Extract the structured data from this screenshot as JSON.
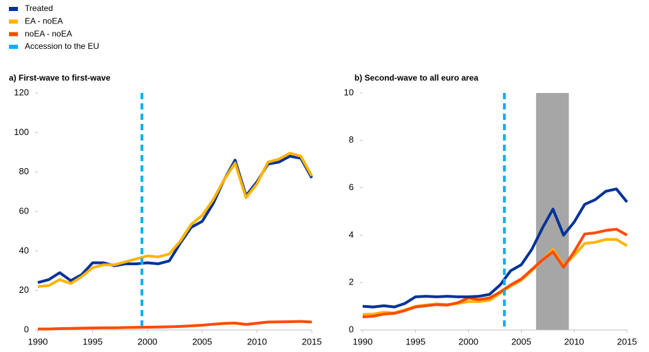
{
  "chart_data": [
    {
      "type": "line",
      "title": "a) First-wave to first-wave",
      "x": [
        1990,
        1991,
        1992,
        1993,
        1994,
        1995,
        1996,
        1997,
        1998,
        1999,
        2000,
        2001,
        2002,
        2003,
        2004,
        2005,
        2006,
        2007,
        2008,
        2009,
        2010,
        2011,
        2012,
        2013,
        2014,
        2015
      ],
      "xlim": [
        1990,
        2015
      ],
      "xticks": [
        1990,
        1995,
        2000,
        2005,
        2010,
        2015
      ],
      "ylim": [
        0,
        120
      ],
      "yticks": [
        0,
        20,
        40,
        60,
        80,
        100,
        120
      ],
      "series": [
        {
          "name": "Treated",
          "color": "#003299",
          "values": [
            24,
            25.5,
            29,
            25,
            28,
            34,
            34,
            32.5,
            33.5,
            33.5,
            34,
            33.5,
            35,
            44,
            52,
            55,
            64,
            76,
            86,
            68,
            75,
            84,
            85,
            88,
            87,
            77
          ]
        },
        {
          "name": "EA - noEA",
          "color": "#ffb400",
          "values": [
            22,
            22.5,
            25.5,
            23.5,
            27,
            31.5,
            33,
            33,
            34.5,
            36,
            37.5,
            37,
            38.5,
            45,
            53.5,
            58,
            66,
            76,
            84.5,
            67,
            74,
            85,
            86.5,
            89.5,
            88,
            78
          ]
        },
        {
          "name": "noEA - noEA",
          "color": "#ff4b00",
          "values": [
            0.5,
            0.5,
            0.7,
            0.8,
            0.9,
            1,
            1.1,
            1.1,
            1.2,
            1.3,
            1.4,
            1.5,
            1.6,
            1.8,
            2.1,
            2.4,
            2.9,
            3.3,
            3.5,
            2.8,
            3.4,
            4,
            4.1,
            4.2,
            4.3,
            4
          ]
        }
      ],
      "vline": {
        "name": "Accession to the EU",
        "x": 1999.5,
        "color": "#00b1ea"
      }
    },
    {
      "type": "line",
      "title": "b) Second-wave to all euro area",
      "x": [
        1990,
        1991,
        1992,
        1993,
        1994,
        1995,
        1996,
        1997,
        1998,
        1999,
        2000,
        2001,
        2002,
        2003,
        2004,
        2005,
        2006,
        2007,
        2008,
        2009,
        2010,
        2011,
        2012,
        2013,
        2014,
        2015
      ],
      "xlim": [
        1990,
        2015
      ],
      "xticks": [
        1990,
        1995,
        2000,
        2005,
        2010,
        2015
      ],
      "ylim": [
        0,
        10
      ],
      "yticks": [
        0,
        2,
        4,
        6,
        8,
        10
      ],
      "series": [
        {
          "name": "Treated",
          "color": "#003299",
          "values": [
            1.0,
            0.97,
            1.02,
            0.97,
            1.12,
            1.4,
            1.42,
            1.4,
            1.42,
            1.4,
            1.4,
            1.42,
            1.5,
            1.9,
            2.5,
            2.75,
            3.4,
            4.3,
            5.1,
            4.0,
            4.55,
            5.3,
            5.5,
            5.85,
            5.95,
            5.4
          ]
        },
        {
          "name": "EA - noEA",
          "color": "#ffb400",
          "values": [
            0.65,
            0.67,
            0.75,
            0.72,
            0.85,
            1.0,
            1.05,
            1.1,
            1.07,
            1.12,
            1.2,
            1.2,
            1.25,
            1.55,
            1.85,
            2.1,
            2.5,
            2.95,
            3.4,
            2.7,
            3.15,
            3.65,
            3.7,
            3.82,
            3.82,
            3.55
          ]
        },
        {
          "name": "noEA - noEA",
          "color": "#ff4b00",
          "values": [
            0.55,
            0.58,
            0.67,
            0.7,
            0.82,
            0.97,
            1.02,
            1.07,
            1.05,
            1.15,
            1.35,
            1.28,
            1.35,
            1.6,
            1.9,
            2.15,
            2.55,
            2.95,
            3.3,
            2.65,
            3.3,
            4.05,
            4.1,
            4.2,
            4.25,
            4.0
          ]
        }
      ],
      "vline": {
        "name": "Accession to the EU",
        "x": 2003.4,
        "color": "#00b1ea"
      },
      "shaded_range": [
        2006.4,
        2009.5
      ],
      "shade_color": "#a6a6a6"
    }
  ]
}
